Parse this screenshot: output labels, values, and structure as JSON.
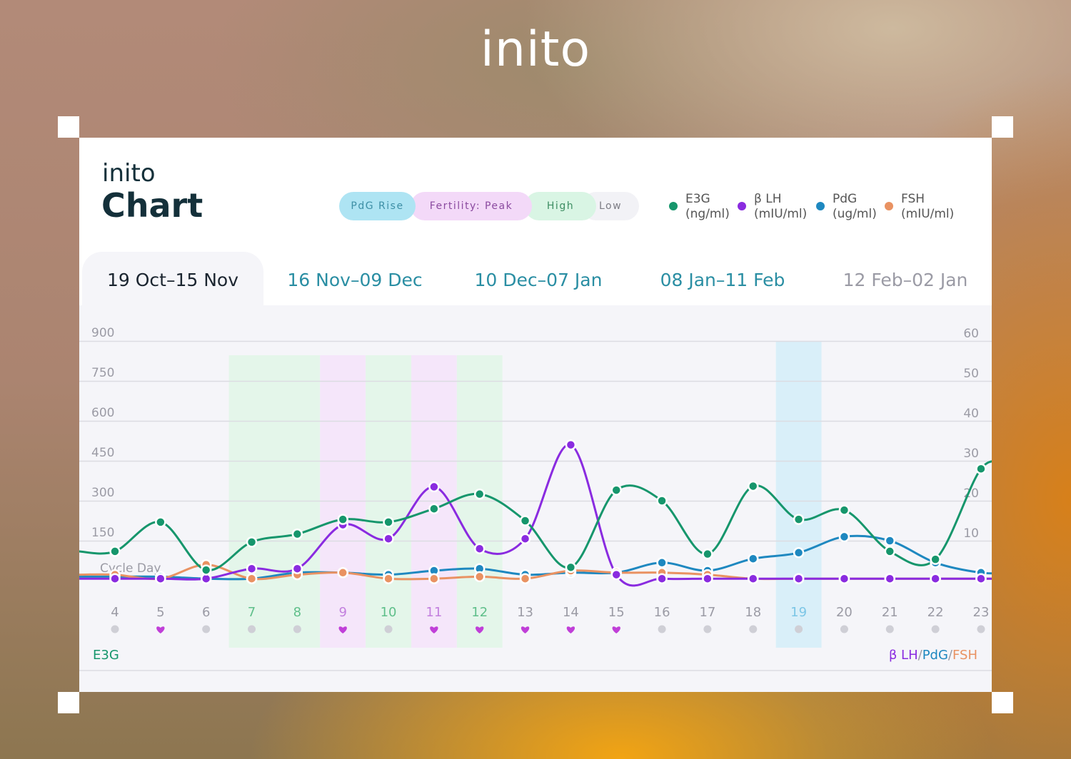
{
  "brand": "inito",
  "card": {
    "logo": "inito",
    "title": "Chart"
  },
  "phases": [
    {
      "label": "PdG Rise",
      "bg": "#aee4f3",
      "color": "#3d8fa6"
    },
    {
      "label": "Fertility: Peak",
      "bg": "#f3d9f8",
      "color": "#8b4aa0"
    },
    {
      "label": "High",
      "bg": "#d9f5e4",
      "color": "#3e8e63"
    },
    {
      "label": "Low",
      "bg": "#f2f2f6",
      "color": "#7d7d85"
    }
  ],
  "legend": [
    {
      "name": "E3G",
      "unit": "(ng/ml)",
      "color": "#16966c"
    },
    {
      "name": "β LH",
      "unit": "(mIU/ml)",
      "color": "#8a2be0"
    },
    {
      "name": "PdG",
      "unit": "(ug/ml)",
      "color": "#1e88c0"
    },
    {
      "name": "FSH",
      "unit": "(mIU/ml)",
      "color": "#e99262"
    }
  ],
  "tabs": [
    {
      "label": "19 Oct–15 Nov",
      "active": true,
      "color": "#1b2530"
    },
    {
      "label": "16 Nov–09 Dec",
      "active": false,
      "color": "#2a8ea3"
    },
    {
      "label": "10 Dec–07 Jan",
      "active": false,
      "color": "#2a8ea3"
    },
    {
      "label": "08 Jan–11 Feb",
      "active": false,
      "color": "#2a8ea3"
    },
    {
      "label": "12 Feb–02 Jan",
      "active": false,
      "color": "#9b9ba5"
    }
  ],
  "chart_data": {
    "type": "line",
    "xlabel": "Cycle Day",
    "x": [
      4,
      5,
      6,
      7,
      8,
      9,
      10,
      11,
      12,
      13,
      14,
      15,
      16,
      17,
      18,
      19,
      20,
      21,
      22,
      23
    ],
    "x_colors": [
      "#9b9ba5",
      "#9b9ba5",
      "#9b9ba5",
      "#5fbf8a",
      "#5fbf8a",
      "#c27fde",
      "#5fbf8a",
      "#c27fde",
      "#5fbf8a",
      "#9b9ba5",
      "#9b9ba5",
      "#9b9ba5",
      "#9b9ba5",
      "#9b9ba5",
      "#9b9ba5",
      "#7cc6e6",
      "#9b9ba5",
      "#9b9ba5",
      "#9b9ba5",
      "#9b9ba5"
    ],
    "day_markers": [
      "dot",
      "heart",
      "dot",
      "dot",
      "dot",
      "heart",
      "dot",
      "heart",
      "heart",
      "heart",
      "heart",
      "heart",
      "dot",
      "dot",
      "dot",
      "dot",
      "dot",
      "dot",
      "dot",
      "dot"
    ],
    "day_highlights": [
      {
        "from": 7,
        "to": 8,
        "color": "#e4f6ea"
      },
      {
        "from": 9,
        "to": 9,
        "color": "#f5e6fa"
      },
      {
        "from": 10,
        "to": 10,
        "color": "#e4f6ea"
      },
      {
        "from": 11,
        "to": 11,
        "color": "#f5e6fa"
      },
      {
        "from": 12,
        "to": 12,
        "color": "#e4f6ea"
      },
      {
        "from": 19,
        "to": 19,
        "color": "#d9eff9"
      }
    ],
    "y_left": {
      "label": "E3G",
      "ticks": [
        150,
        300,
        450,
        600,
        750,
        900
      ],
      "ylim": [
        0,
        900
      ],
      "color": "#16966c"
    },
    "y_right": {
      "label": "β LH/PdG/FSH",
      "ticks": [
        10,
        20,
        30,
        40,
        50,
        60
      ],
      "ylim": [
        0,
        60
      ]
    },
    "right_axis_label_parts": [
      {
        "text": "β LH",
        "color": "#8a2be0"
      },
      {
        "text": "/",
        "color": "#9b9ba5"
      },
      {
        "text": "PdG",
        "color": "#1e88c0"
      },
      {
        "text": "/",
        "color": "#9b9ba5"
      },
      {
        "text": "FSH",
        "color": "#e99262"
      }
    ],
    "series": [
      {
        "name": "E3G",
        "axis": "left",
        "color": "#16966c",
        "values": [
          110,
          220,
          40,
          145,
          175,
          230,
          220,
          270,
          325,
          225,
          50,
          340,
          300,
          100,
          355,
          230,
          265,
          110,
          80,
          420
        ]
      },
      {
        "name": "β LH",
        "axis": "right",
        "color": "#8a2be0",
        "values": [
          0.5,
          0.5,
          0.5,
          3,
          3,
          14,
          10.5,
          23.5,
          8,
          10.5,
          34,
          1.5,
          0.5,
          0.5,
          0.5,
          0.5,
          0.5,
          0.5,
          0.5,
          0.5
        ]
      },
      {
        "name": "PdG",
        "axis": "right",
        "color": "#1e88c0",
        "values": [
          1,
          1,
          0.5,
          0.5,
          2,
          2,
          1.5,
          2.5,
          3,
          1.5,
          2,
          2,
          4.5,
          2.5,
          5.5,
          7,
          11,
          10,
          4.5,
          2
        ]
      },
      {
        "name": "FSH",
        "axis": "right",
        "color": "#e99262",
        "values": [
          1.5,
          0.5,
          4,
          0.5,
          1.5,
          2,
          0.5,
          0.5,
          1,
          0.5,
          2.5,
          2,
          2,
          1.5,
          0.5,
          0.5,
          0.5,
          0.5,
          0.5,
          0.5
        ]
      }
    ]
  }
}
